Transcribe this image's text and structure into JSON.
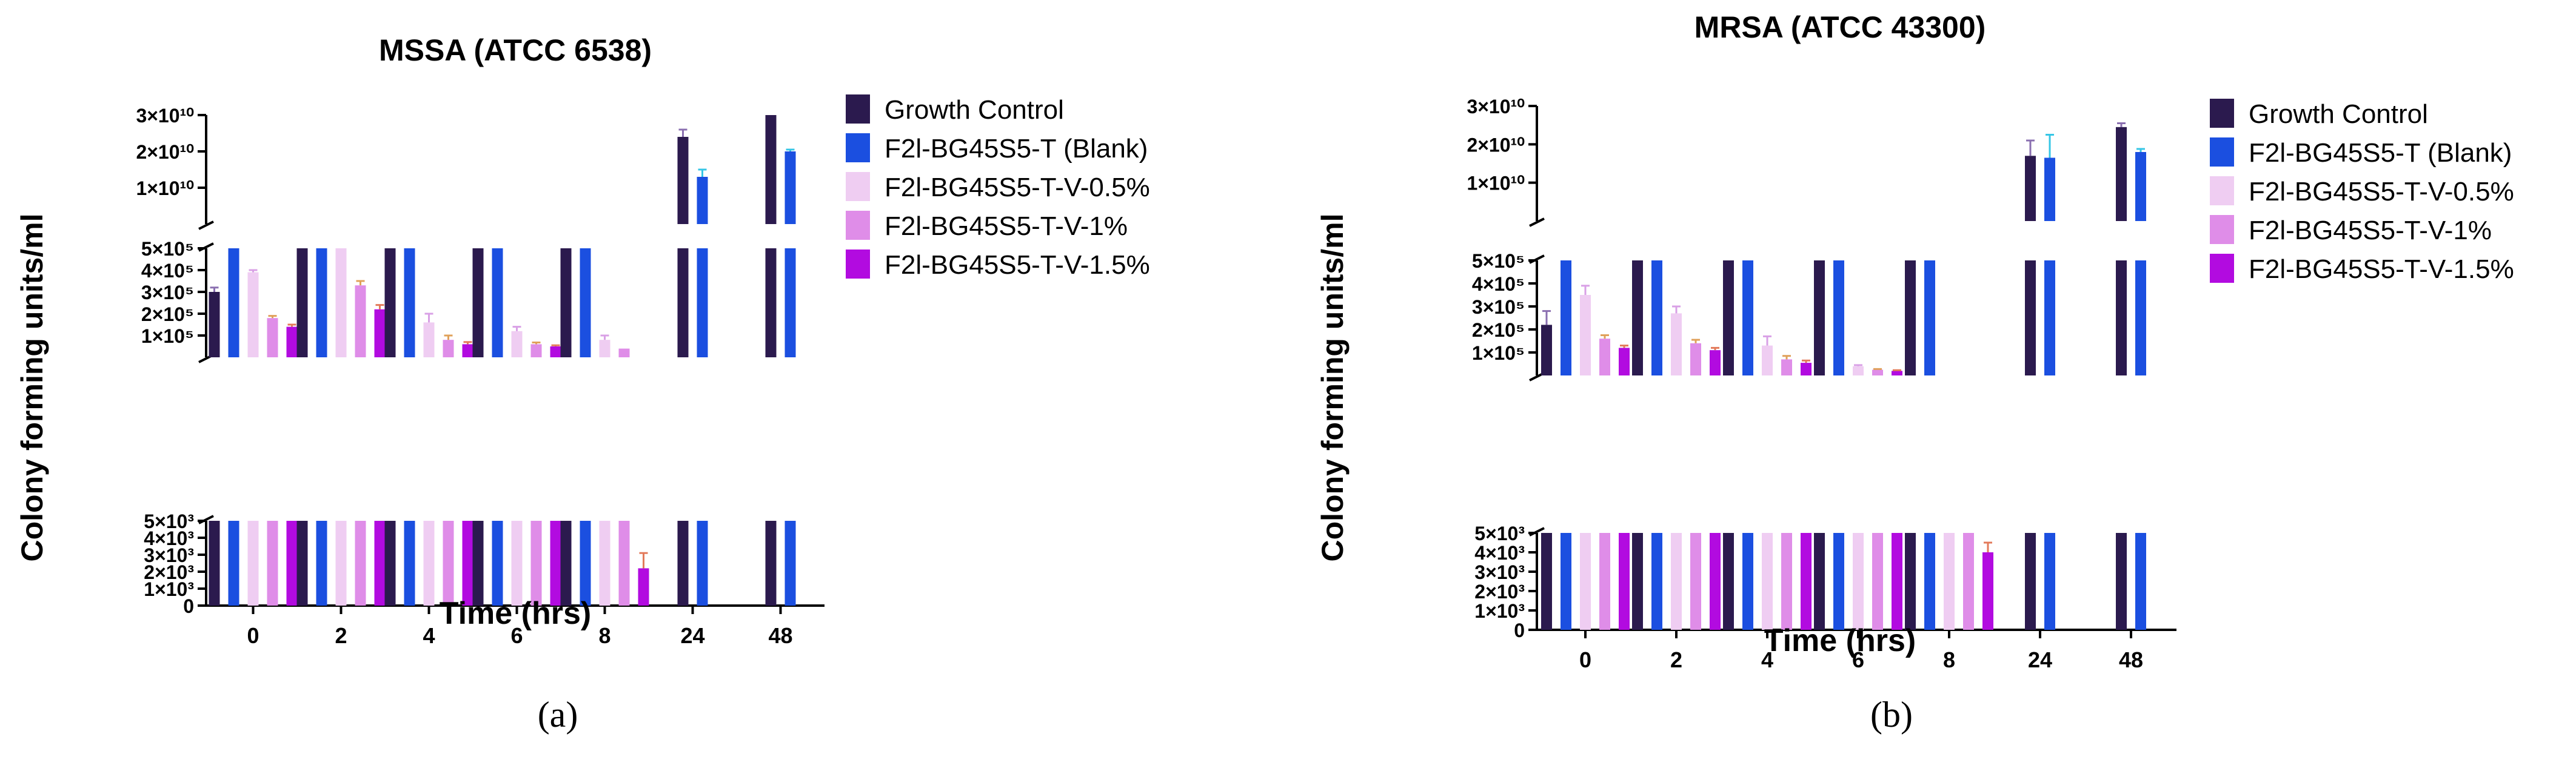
{
  "chart_data": [
    {
      "type": "bar",
      "panel_label": "(a)",
      "title": "MSSA (ATCC 6538)",
      "xlabel": "Time (hrs)",
      "ylabel": "Colony forming units/ml",
      "categories": [
        "0",
        "2",
        "4",
        "6",
        "8",
        "24",
        "48"
      ],
      "y_axis_segments": [
        {
          "range": [
            0,
            5000
          ],
          "ticks": [
            "0",
            "1×10³",
            "2×10³",
            "3×10³",
            "4×10³",
            "5×10³"
          ],
          "tick_values": [
            0,
            1000,
            2000,
            3000,
            4000,
            5000
          ]
        },
        {
          "range": [
            0,
            500000
          ],
          "ticks": [
            "1×10⁵",
            "2×10⁵",
            "3×10⁵",
            "4×10⁵",
            "5×10⁵"
          ],
          "tick_values": [
            100000,
            200000,
            300000,
            400000,
            500000
          ]
        },
        {
          "range": [
            0,
            30000000000
          ],
          "ticks": [
            "1×10¹⁰",
            "2×10¹⁰",
            "3×10¹⁰"
          ],
          "tick_values": [
            10000000000,
            20000000000,
            30000000000
          ]
        }
      ],
      "series": [
        {
          "name": "Growth Control",
          "color": "#2b1a4e",
          "values": [
            300000,
            500000,
            500000,
            500000,
            500000,
            24000000000,
            30000000000
          ],
          "errors": [
            20000,
            0,
            0,
            0,
            0,
            2000000000,
            0
          ]
        },
        {
          "name": "F2l-BG45S5-T (Blank)",
          "color": "#1b4fe0",
          "values": [
            500000,
            500000,
            500000,
            500000,
            500000,
            13000000000,
            20000000000
          ],
          "errors": [
            0,
            0,
            0,
            0,
            0,
            2000000000,
            500000000
          ]
        },
        {
          "name": "F2l-BG45S5-T-V-0.5%",
          "color": "#efcdf2",
          "values": [
            390000,
            500000,
            160000,
            120000,
            80000,
            0,
            0
          ],
          "errors": [
            10000,
            0,
            40000,
            20000,
            20000,
            0,
            0
          ]
        },
        {
          "name": "F2l-BG45S5-T-V-1%",
          "color": "#df8de8",
          "values": [
            180000,
            330000,
            80000,
            60000,
            40000,
            0,
            0
          ],
          "errors": [
            10000,
            20000,
            20000,
            8000,
            0,
            0,
            0
          ]
        },
        {
          "name": "F2l-BG45S5-T-V-1.5%",
          "color": "#b20be0",
          "values": [
            140000,
            220000,
            60000,
            50000,
            2200,
            0,
            0
          ],
          "errors": [
            10000,
            20000,
            10000,
            5000,
            900,
            0,
            0
          ]
        }
      ],
      "legend_position": "right"
    },
    {
      "type": "bar",
      "panel_label": "(b)",
      "title": "MRSA (ATCC 43300)",
      "xlabel": "Time (hrs)",
      "ylabel": "Colony forming units/ml",
      "categories": [
        "0",
        "2",
        "4",
        "6",
        "8",
        "24",
        "48"
      ],
      "y_axis_segments": [
        {
          "range": [
            0,
            5000
          ],
          "ticks": [
            "0",
            "1×10³",
            "2×10³",
            "3×10³",
            "4×10³",
            "5×10³"
          ],
          "tick_values": [
            0,
            1000,
            2000,
            3000,
            4000,
            5000
          ]
        },
        {
          "range": [
            0,
            500000
          ],
          "ticks": [
            "1×10⁵",
            "2×10⁵",
            "3×10⁵",
            "4×10⁵",
            "5×10⁵"
          ],
          "tick_values": [
            100000,
            200000,
            300000,
            400000,
            500000
          ]
        },
        {
          "range": [
            0,
            30000000000
          ],
          "ticks": [
            "1×10¹⁰",
            "2×10¹⁰",
            "3×10¹⁰"
          ],
          "tick_values": [
            10000000000,
            20000000000,
            30000000000
          ]
        }
      ],
      "series": [
        {
          "name": "Growth Control",
          "color": "#2b1a4e",
          "values": [
            220000,
            500000,
            500000,
            500000,
            500000,
            17000000000,
            24500000000
          ],
          "errors": [
            60000,
            0,
            0,
            0,
            0,
            4000000000,
            1000000000
          ]
        },
        {
          "name": "F2l-BG45S5-T (Blank)",
          "color": "#1b4fe0",
          "values": [
            500000,
            500000,
            500000,
            500000,
            500000,
            16500000000,
            18000000000
          ],
          "errors": [
            0,
            0,
            0,
            0,
            0,
            6000000000,
            800000000
          ]
        },
        {
          "name": "F2l-BG45S5-T-V-0.5%",
          "color": "#efcdf2",
          "values": [
            350000,
            270000,
            130000,
            40000,
            5000,
            0,
            0
          ],
          "errors": [
            40000,
            30000,
            40000,
            5000,
            0,
            0,
            0
          ]
        },
        {
          "name": "F2l-BG45S5-T-V-1%",
          "color": "#df8de8",
          "values": [
            160000,
            140000,
            70000,
            25000,
            5000,
            0,
            0
          ],
          "errors": [
            15000,
            15000,
            15000,
            3000,
            0,
            0,
            0
          ]
        },
        {
          "name": "F2l-BG45S5-T-V-1.5%",
          "color": "#b20be0",
          "values": [
            120000,
            110000,
            55000,
            20000,
            4000,
            0,
            0
          ],
          "errors": [
            10000,
            10000,
            10000,
            3000,
            500,
            0,
            0
          ]
        }
      ],
      "legend_position": "right"
    }
  ]
}
